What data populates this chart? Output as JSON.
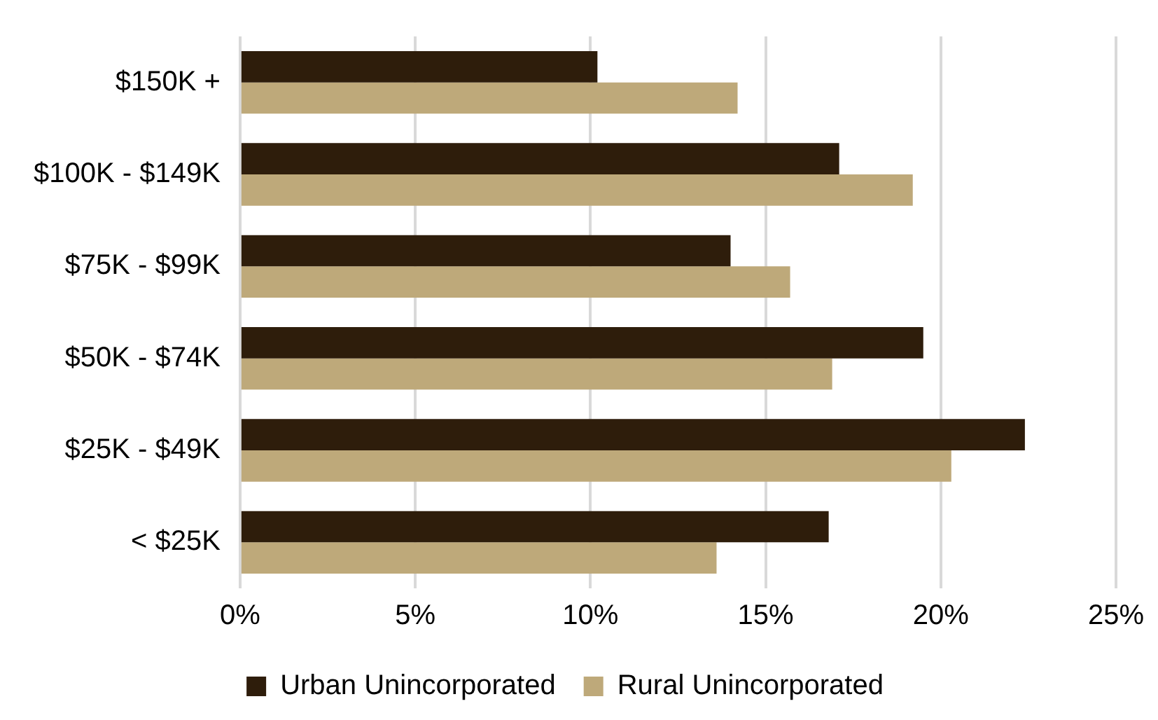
{
  "chart_data": {
    "type": "bar",
    "orientation": "horizontal",
    "categories": [
      "$150K +",
      "$100K - $149K",
      "$75K - $99K",
      "$50K - $74K",
      "$25K - $49K",
      "< $25K"
    ],
    "series": [
      {
        "name": "Urban Unincorporated",
        "color": "#2e1d0b",
        "values": [
          10.2,
          17.1,
          14.0,
          19.5,
          22.4,
          16.8
        ]
      },
      {
        "name": "Rural Unincorporated",
        "color": "#bea97a",
        "values": [
          14.2,
          19.2,
          15.7,
          16.9,
          20.3,
          13.6
        ]
      }
    ],
    "xlim": [
      0,
      25
    ],
    "xticks": [
      {
        "value": 0,
        "label": "0%"
      },
      {
        "value": 5,
        "label": "5%"
      },
      {
        "value": 10,
        "label": "10%"
      },
      {
        "value": 15,
        "label": "15%"
      },
      {
        "value": 20,
        "label": "20%"
      },
      {
        "value": 25,
        "label": "25%"
      }
    ],
    "grid": "x",
    "legend": "bottom"
  }
}
